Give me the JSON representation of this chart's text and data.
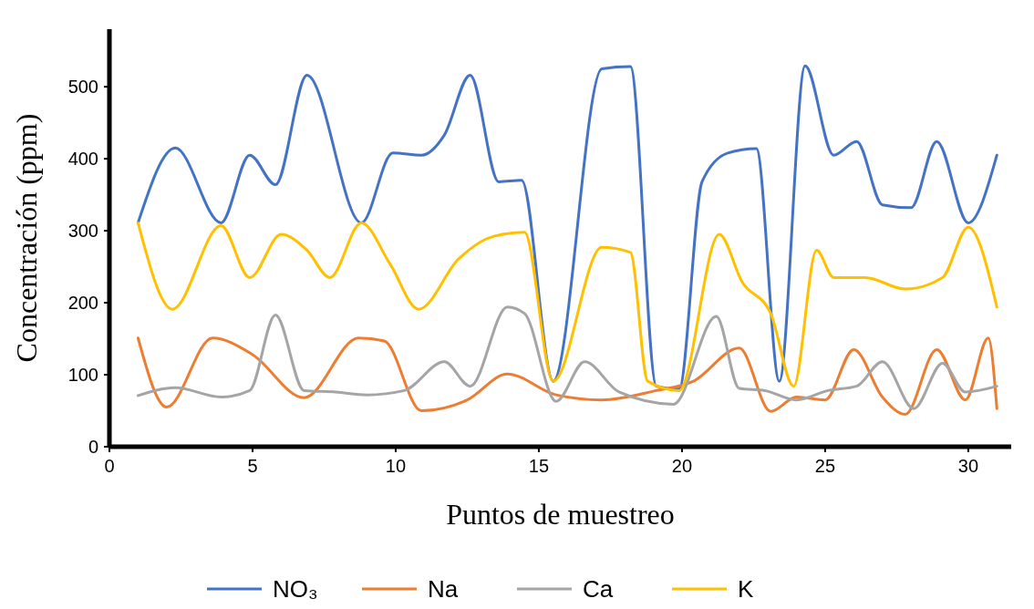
{
  "chart_data": {
    "type": "line",
    "xlabel": "Puntos de muestreo",
    "ylabel": "Concentración (ppm)",
    "xlim": [
      0,
      31.5
    ],
    "xticks": [
      0,
      5,
      10,
      15,
      20,
      25,
      30
    ],
    "ylim": [
      0,
      580
    ],
    "yticks": [
      0,
      100,
      200,
      300,
      400,
      500
    ],
    "grid": false,
    "legend": "bottom",
    "marker": "none",
    "line_style": "solid",
    "series": [
      {
        "name": "NO₃",
        "color": "#4472c4",
        "x": [
          1,
          2.3,
          3.9,
          4.9,
          5.8,
          6.9,
          8.8,
          9.9,
          10.9,
          11.7,
          12.6,
          13.6,
          14.4,
          15.5,
          17.2,
          18.2,
          19.1,
          19.9,
          20.7,
          21.6,
          22.6,
          23.4,
          24.3,
          25.3,
          26.1,
          27,
          28,
          28.9,
          30,
          31
        ],
        "values": [
          311,
          415,
          311,
          405,
          364,
          516,
          311,
          408,
          405,
          433,
          516,
          368,
          370,
          91,
          525,
          528,
          84,
          80,
          368,
          408,
          414,
          91,
          529,
          405,
          424,
          336,
          332,
          424,
          311,
          405
        ]
      },
      {
        "name": "Na",
        "color": "#ed7d31",
        "x": [
          1,
          2,
          3.6,
          5,
          6.8,
          8.7,
          9.6,
          10.9,
          12.5,
          13.9,
          15.6,
          17.2,
          19.1,
          20.4,
          22,
          23.1,
          24,
          25,
          26,
          27,
          27.8,
          28.9,
          29.9,
          30.7,
          31
        ],
        "values": [
          151,
          55,
          151,
          128,
          68,
          151,
          147,
          50,
          65,
          101,
          72,
          65,
          78,
          91,
          137,
          49,
          69,
          65,
          135,
          69,
          45,
          135,
          65,
          151,
          53
        ]
      },
      {
        "name": "Ca",
        "color": "#a5a5a5",
        "x": [
          1,
          2.3,
          3.9,
          4.9,
          5.8,
          6.8,
          7.9,
          9,
          10.3,
          11.7,
          12.6,
          13.9,
          14.5,
          15.6,
          16.6,
          17.8,
          19.7,
          21.2,
          22,
          22.9,
          24,
          25.1,
          26.1,
          27,
          28.1,
          29.1,
          29.9,
          31
        ],
        "values": [
          71,
          82,
          69,
          78,
          183,
          78,
          76,
          72,
          78,
          118,
          84,
          194,
          185,
          63,
          118,
          76,
          59,
          181,
          81,
          78,
          65,
          78,
          84,
          118,
          53,
          116,
          76,
          84
        ]
      },
      {
        "name": "K",
        "color": "#ffc000",
        "x": [
          1,
          2.2,
          3.9,
          4.9,
          6,
          6.9,
          7.7,
          8.8,
          9.8,
          10.8,
          12.2,
          13.4,
          14.5,
          15.5,
          17.2,
          18.2,
          18.8,
          19.9,
          21.3,
          22.1,
          23.1,
          23.9,
          24.7,
          25.3,
          26.4,
          27.8,
          29.1,
          30,
          31
        ],
        "values": [
          311,
          191,
          307,
          235,
          295,
          273,
          235,
          311,
          254,
          191,
          261,
          292,
          298,
          91,
          277,
          270,
          91,
          78,
          295,
          229,
          185,
          84,
          273,
          235,
          235,
          219,
          235,
          305,
          194
        ]
      }
    ]
  }
}
